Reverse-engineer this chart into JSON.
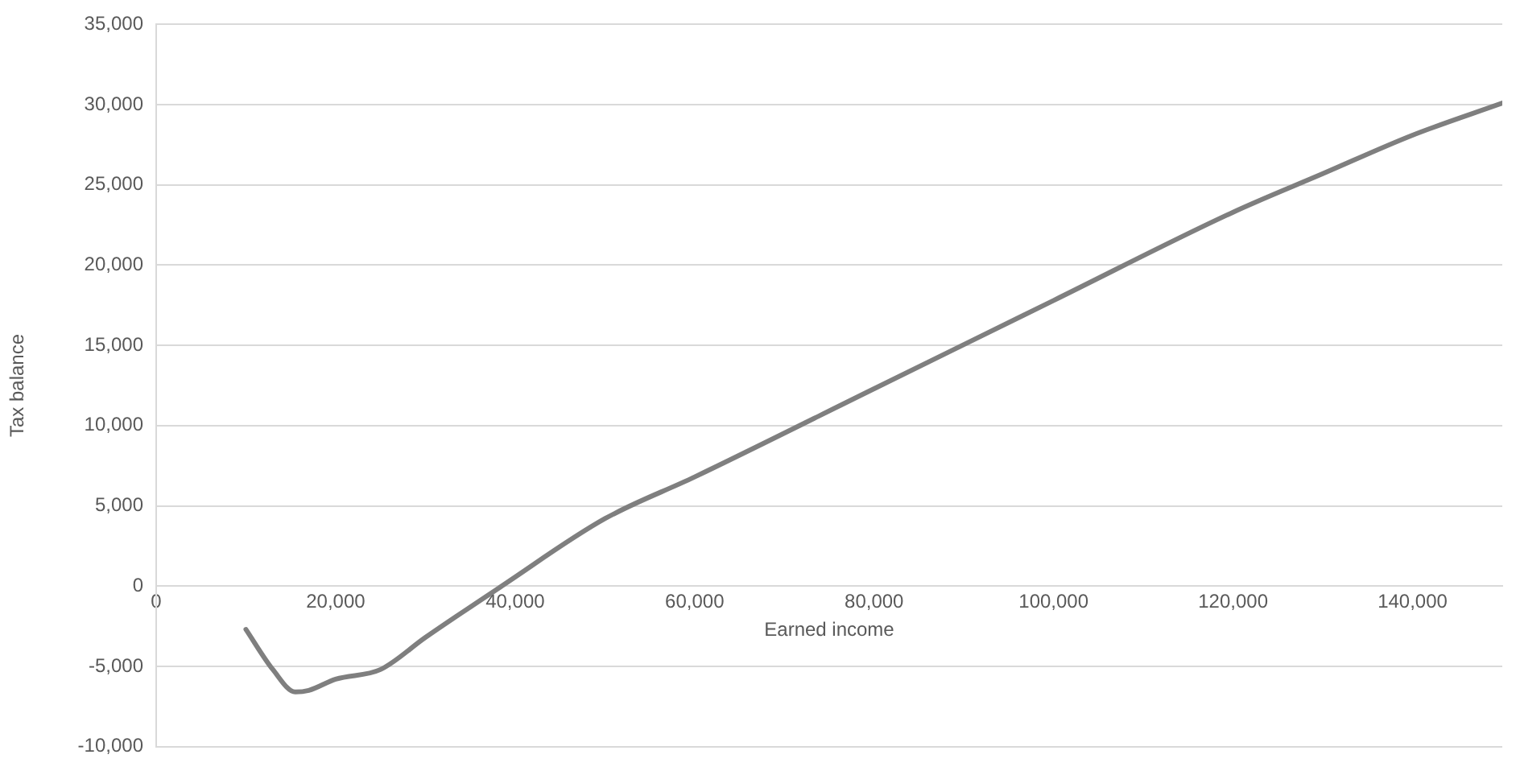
{
  "chart_data": {
    "type": "line",
    "xlabel": "Earned income",
    "ylabel": "Tax balance",
    "x": [
      10000,
      13000,
      15500,
      17000,
      20000,
      25000,
      30000,
      38500,
      50000,
      60000,
      80000,
      100000,
      120000,
      130000,
      140000,
      150000
    ],
    "series": [
      {
        "color": "#7f7f7f",
        "values": [
          -2700,
          -5200,
          -6600,
          -6500,
          -5800,
          -5200,
          -3200,
          0,
          4200,
          6800,
          12300,
          17800,
          23300,
          25700,
          28100,
          30100
        ]
      }
    ],
    "xlim": [
      0,
      150000
    ],
    "xticks": [
      0,
      {
        "value": 20000,
        "label": "20,000"
      },
      {
        "value": 40000,
        "label": "40,000"
      },
      {
        "value": 60000,
        "label": "60,000"
      },
      {
        "value": 80000,
        "label": "80,000"
      },
      {
        "value": 100000,
        "label": "100,000"
      },
      {
        "value": 120000,
        "label": "120,000"
      },
      {
        "value": 140000,
        "label": "140,000"
      }
    ],
    "ylim": [
      -10000,
      35000
    ],
    "yticks": [
      {
        "value": -10000,
        "label": "-10,000"
      },
      {
        "value": -5000,
        "label": "-5,000"
      },
      0,
      {
        "value": 5000,
        "label": "5,000"
      },
      {
        "value": 10000,
        "label": "10,000"
      },
      {
        "value": 15000,
        "label": "15,000"
      },
      {
        "value": 20000,
        "label": "20,000"
      },
      {
        "value": 25000,
        "label": "25,000"
      },
      {
        "value": 30000,
        "label": "30,000"
      },
      {
        "value": 35000,
        "label": "35,000"
      }
    ],
    "grid": "y",
    "legend": false,
    "marker": "none",
    "line_style": "solid"
  }
}
